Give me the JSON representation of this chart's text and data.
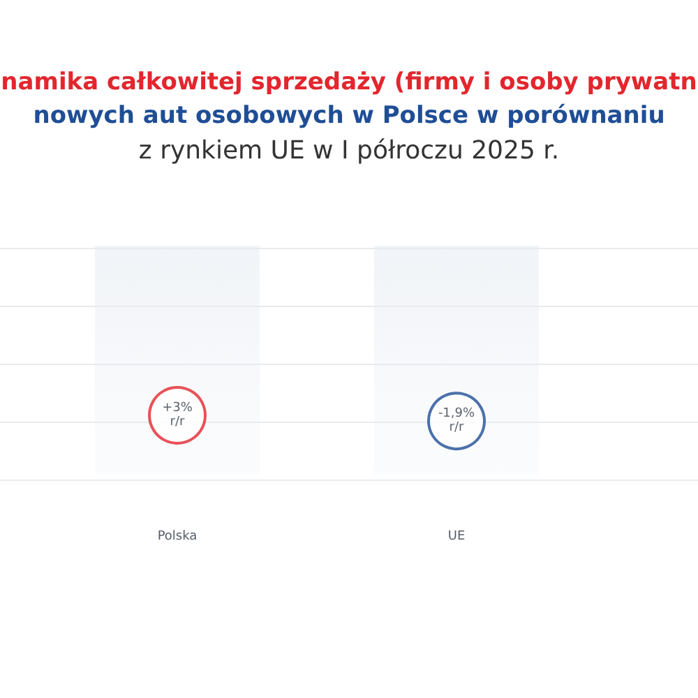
{
  "chart_data": {
    "type": "other",
    "title": "namika całkowitej sprzedaży (firmy i osoby prywatn\nnowych aut osobowych w Polsce w porównaniu",
    "subtitle": "z rynkiem UE w I półroczu 2025 r.",
    "categories": [
      "Polska",
      "UE"
    ],
    "values": [
      3,
      -1.9
    ],
    "value_labels": [
      "+3%\nr/r",
      "-1,9%\nr/r"
    ],
    "colors": [
      "#e3262d",
      "#1f4e96"
    ]
  }
}
